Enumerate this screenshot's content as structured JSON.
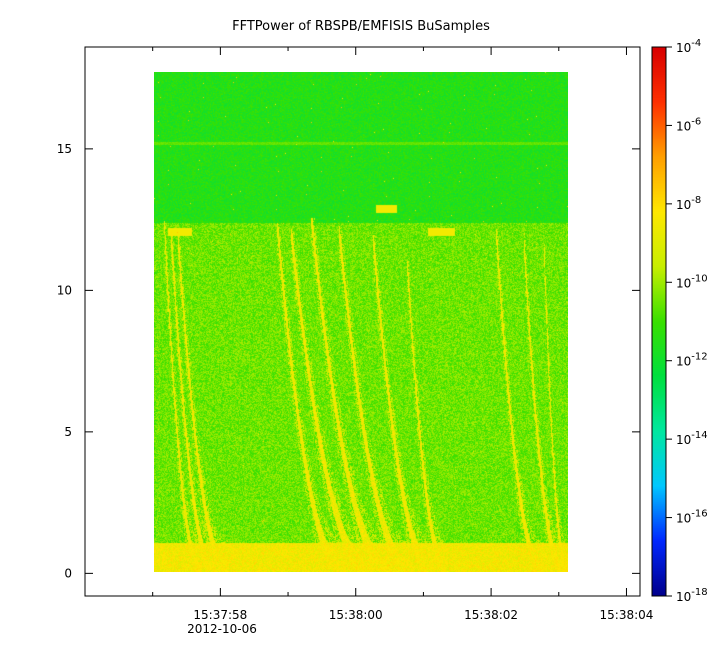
{
  "chart_data": {
    "type": "heatmap",
    "title": "FFTPower of RBSPB/EMFISIS  BuSamples",
    "xlabel": "",
    "ylabel": "",
    "x_axis": {
      "type": "time",
      "range": [
        "2012-10-06T15:37:56.0",
        "2012-10-06T15:38:04.2"
      ],
      "ticks": [
        {
          "t": "15:37:58",
          "sec": 58
        },
        {
          "t": "15:38:00",
          "sec": 60
        },
        {
          "t": "15:38:02",
          "sec": 62
        },
        {
          "t": "15:38:04",
          "sec": 64
        }
      ],
      "minor_ticks_sec": [
        57,
        59,
        61,
        63
      ],
      "date_label": "2012-10-06"
    },
    "y_axis": {
      "range": [
        -0.8,
        18.6
      ],
      "ticks": [
        0,
        5,
        10,
        15
      ]
    },
    "colorbar": {
      "scale": "log",
      "range_exp": [
        -18,
        -4
      ],
      "ticks": [
        {
          "base": "10",
          "exp": "-4"
        },
        {
          "base": "10",
          "exp": "-6"
        },
        {
          "base": "10",
          "exp": "-8"
        },
        {
          "base": "10",
          "exp": "-10"
        },
        {
          "base": "10",
          "exp": "-12"
        },
        {
          "base": "10",
          "exp": "-14"
        },
        {
          "base": "10",
          "exp": "-16"
        },
        {
          "base": "10",
          "exp": "-18"
        }
      ],
      "colors": [
        "#00008c",
        "#0028ff",
        "#00c8ff",
        "#00e8a0",
        "#00e040",
        "#3ae000",
        "#c8ef00",
        "#ffe800",
        "#ffa000",
        "#ff3000",
        "#d80000"
      ]
    },
    "data_extent": {
      "time_sec": [
        57.0,
        63.05
      ],
      "freq": [
        0,
        17.5
      ]
    },
    "background_levels_exp": {
      "above_12": -11.5,
      "below_12": -10.5,
      "near_zero": -8.5
    },
    "bright_line_freq": 15.0,
    "chorus_features": [
      {
        "start_sec": 57.15,
        "end_sec": 57.7,
        "top": 12.3
      },
      {
        "start_sec": 57.25,
        "end_sec": 57.9,
        "top": 11.9
      },
      {
        "start_sec": 57.35,
        "end_sec": 58.1,
        "top": 11.8
      },
      {
        "start_sec": 58.8,
        "end_sec": 59.8,
        "top": 12.2
      },
      {
        "start_sec": 59.0,
        "end_sec": 60.2,
        "top": 12.0
      },
      {
        "start_sec": 59.3,
        "end_sec": 60.5,
        "top": 12.4
      },
      {
        "start_sec": 59.7,
        "end_sec": 60.8,
        "top": 12.1
      },
      {
        "start_sec": 60.2,
        "end_sec": 61.1,
        "top": 11.8
      },
      {
        "start_sec": 60.7,
        "end_sec": 61.3,
        "top": 10.9
      },
      {
        "start_sec": 62.0,
        "end_sec": 62.7,
        "top": 12.0
      },
      {
        "start_sec": 62.4,
        "end_sec": 63.0,
        "top": 11.9
      },
      {
        "start_sec": 62.7,
        "end_sec": 63.05,
        "top": 11.5
      }
    ],
    "short_features": [
      {
        "start_sec": 57.2,
        "end_sec": 57.55,
        "freq": 11.9
      },
      {
        "start_sec": 60.25,
        "end_sec": 60.55,
        "freq": 12.7
      },
      {
        "start_sec": 61.0,
        "end_sec": 61.4,
        "freq": 11.9
      }
    ]
  }
}
